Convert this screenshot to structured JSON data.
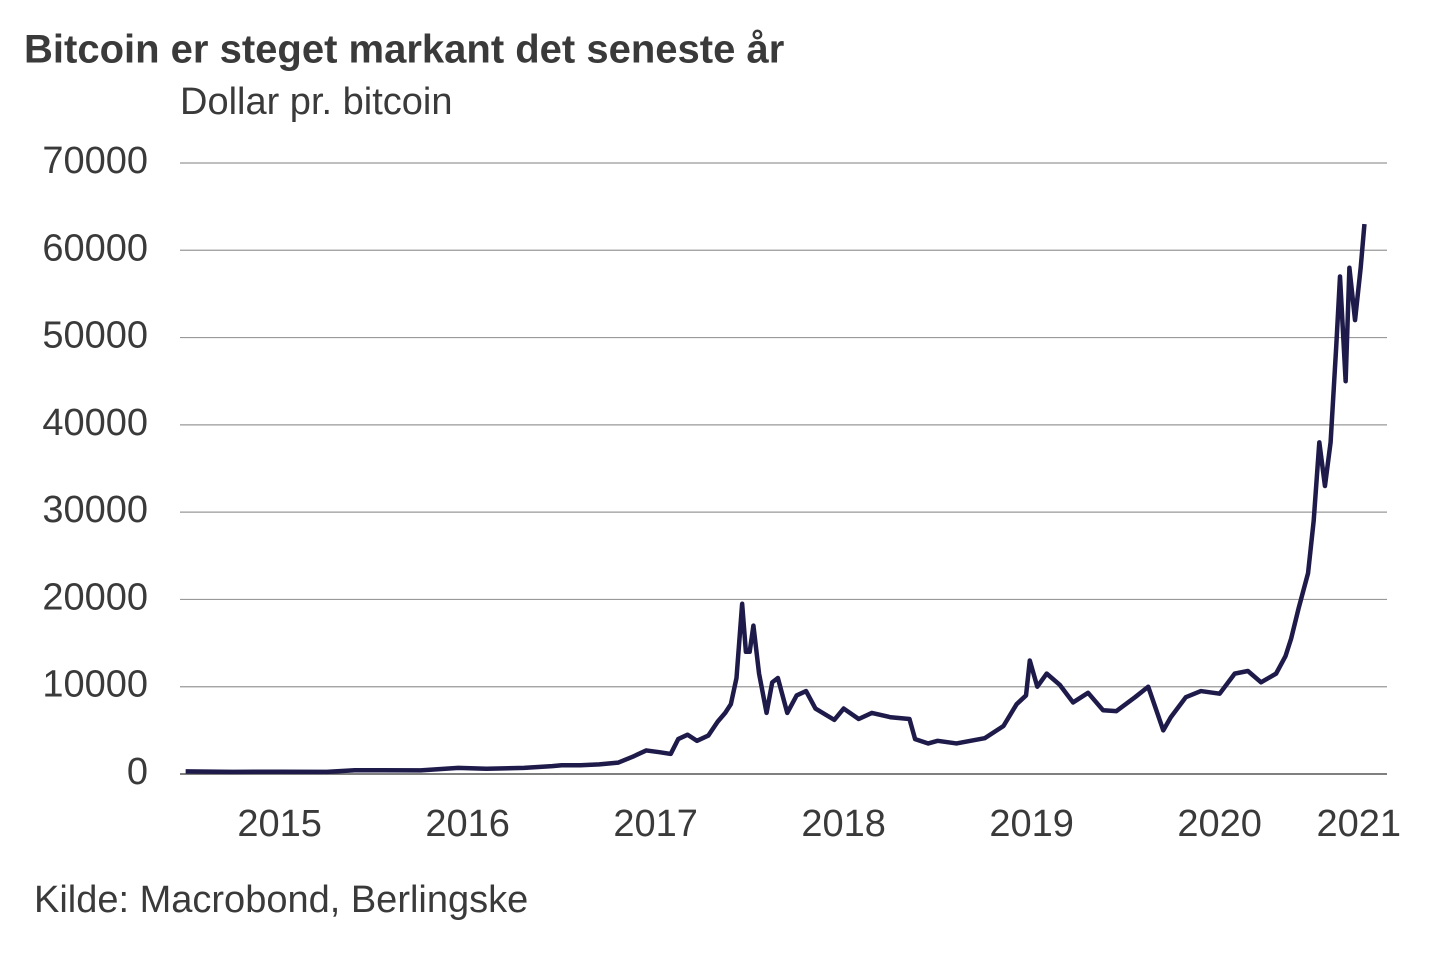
{
  "chart_data": {
    "type": "line",
    "title": "Bitcoin er steget markant det seneste år",
    "y_label": "Dollar pr. bitcoin",
    "source": "Kilde: Macrobond, Berlingske",
    "x": [
      2015.0,
      2015.25,
      2015.5,
      2015.75,
      2015.9,
      2016.0,
      2016.25,
      2016.45,
      2016.6,
      2016.8,
      2016.95,
      2017.0,
      2017.1,
      2017.2,
      2017.3,
      2017.38,
      2017.45,
      2017.52,
      2017.58,
      2017.62,
      2017.67,
      2017.72,
      2017.78,
      2017.83,
      2017.87,
      2017.9,
      2017.93,
      2017.96,
      2017.98,
      2018.0,
      2018.02,
      2018.05,
      2018.09,
      2018.12,
      2018.15,
      2018.2,
      2018.25,
      2018.3,
      2018.35,
      2018.45,
      2018.5,
      2018.58,
      2018.65,
      2018.75,
      2018.85,
      2018.88,
      2018.95,
      2019.0,
      2019.1,
      2019.25,
      2019.35,
      2019.42,
      2019.47,
      2019.49,
      2019.53,
      2019.58,
      2019.65,
      2019.72,
      2019.8,
      2019.88,
      2019.95,
      2020.05,
      2020.12,
      2020.2,
      2020.24,
      2020.32,
      2020.4,
      2020.5,
      2020.58,
      2020.65,
      2020.72,
      2020.8,
      2020.85,
      2020.88,
      2020.92,
      2020.97,
      2021.0,
      2021.03,
      2021.06,
      2021.09,
      2021.12,
      2021.14,
      2021.17,
      2021.19,
      2021.22,
      2021.25,
      2021.27
    ],
    "series": [
      {
        "name": "Bitcoin",
        "color": "#1e1a4a",
        "values": [
          300,
          250,
          260,
          240,
          430,
          430,
          420,
          700,
          600,
          700,
          900,
          1000,
          1000,
          1100,
          1300,
          2000,
          2700,
          2500,
          2300,
          4000,
          4500,
          3800,
          4400,
          6000,
          7000,
          8000,
          11000,
          19500,
          14000,
          14000,
          17000,
          11500,
          7000,
          10500,
          11000,
          7000,
          9000,
          9500,
          7500,
          6200,
          7500,
          6300,
          7000,
          6500,
          6300,
          4000,
          3500,
          3800,
          3500,
          4100,
          5500,
          8000,
          9000,
          13000,
          10000,
          11500,
          10200,
          8200,
          9300,
          7300,
          7200,
          8800,
          10000,
          5000,
          6500,
          8800,
          9500,
          9200,
          11500,
          11800,
          10500,
          11500,
          13500,
          15500,
          19000,
          23000,
          29000,
          38000,
          33000,
          38000,
          49000,
          57000,
          45000,
          58000,
          52000,
          58000,
          63000
        ]
      }
    ],
    "xlim": [
      2014.97,
      2021.39
    ],
    "xticks": [
      {
        "value": 2015.5,
        "label": "2015"
      },
      {
        "value": 2016.5,
        "label": "2016"
      },
      {
        "value": 2017.5,
        "label": "2017"
      },
      {
        "value": 2018.5,
        "label": "2018"
      },
      {
        "value": 2019.5,
        "label": "2019"
      },
      {
        "value": 2020.5,
        "label": "2020"
      },
      {
        "value": 2021.24,
        "label": "2021"
      }
    ],
    "ylim": [
      0,
      70000
    ],
    "yticks": [
      0,
      10000,
      20000,
      30000,
      40000,
      50000,
      60000,
      70000
    ],
    "grid": true
  }
}
